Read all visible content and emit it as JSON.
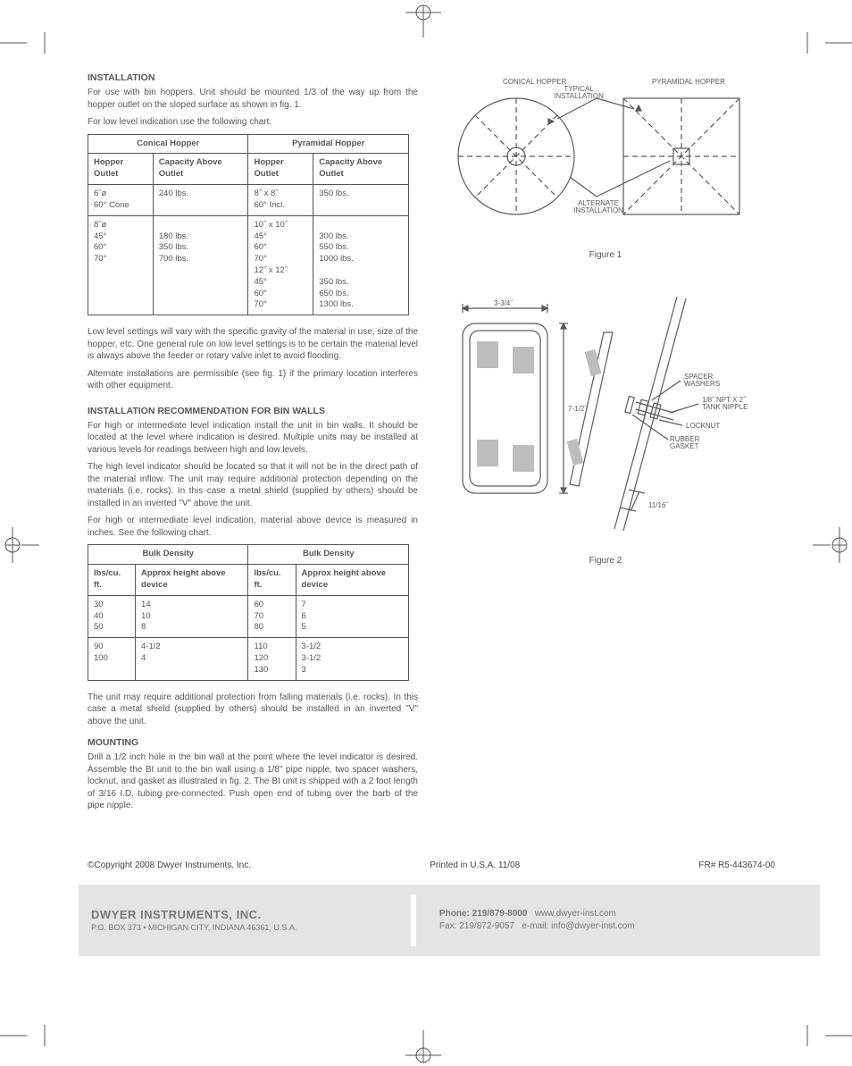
{
  "section1": {
    "title": "INSTALLATION",
    "p1": "For use with bin hoppers. Unit should be mounted 1/3 of the way up from the hopper outlet on the sloped surface as shown in fig. 1.",
    "p2": "For low level indication use the following chart.",
    "p3": "Low level settings will vary with the specific gravity of the material in use, size of the hopper, etc. One general rule on low level settings is to be certain the material level is always above the feeder or rotary valve inlet to avoid flooding.",
    "p4": "Alternate installations are permissible (see fig. 1) if the primary location interferes with other equipment."
  },
  "table1": {
    "group1": "Conical Hopper",
    "group2": "Pyramidal Hopper",
    "h1": "Hopper Outlet",
    "h2": "Capacity Above Outlet",
    "h3": "Hopper Outlet",
    "h4": "Capacity Above Outlet",
    "r1c1": "6˝ø\n60° Cone",
    "r1c2": "240 lbs.",
    "r1c3": "8˝ x 8˝\n60° Incl.",
    "r1c4": "350 lbs.",
    "r2c1": "8˝ø\n45°\n60°\n70°",
    "r2c2": "\n180 lbs.\n350 lbs.\n700 lbs.",
    "r2c3": "10˝ x 10˝\n45°\n60°\n70°\n12˝ x 12˝\n45°\n60°\n70°",
    "r2c4": "\n300 lbs.\n550 lbs.\n1000 lbs.\n\n350 lbs.\n650 lbs.\n1300 lbs."
  },
  "section2": {
    "title": "INSTALLATION RECOMMENDATION FOR BIN WALLS",
    "p1": "For high or intermediate level indication install the unit in bin walls. It should be located at the level where indication is desired. Multiple units may be installed at various levels for readings between high and low levels.",
    "p2": "The high level indicator should be located so that it will not be in the direct path of the material inflow. The unit may require additional protection depending on the materials (i.e. rocks). In this case a metal shield (supplied by others) should be installed in an inverted \"V\" above the unit.",
    "p3": "For high or intermediate level indication, material above device is measured in inches. See the following chart.",
    "p4": "The unit may require additional protection from falling materials (i.e. rocks). In this case a metal shield (supplied by others) should be installed in an inverted \"V\" above the unit."
  },
  "table2": {
    "group1": "Bulk Density",
    "group2": "Bulk Density",
    "h1": "lbs/cu. ft.",
    "h2": "Approx height above device",
    "h3": "lbs/cu. ft.",
    "h4": "Approx height above device",
    "r1c1": "30\n40\n50",
    "r1c2": "14\n10\n8",
    "r1c3": "60\n70\n80",
    "r1c4": "7\n6\n5",
    "r2c1": "90\n100",
    "r2c2": "4-1/2\n4",
    "r2c3": "110\n120\n130",
    "r2c4": "3-1/2\n3-1/2\n3"
  },
  "mounting": {
    "title": "MOUNTING",
    "p1": "Drill a 1/2 inch hole in the bin wall at the point where the level indicator is desired. Assemble the BI unit to the bin wall using a 1/8\" pipe nipple, two spacer washers, locknut, and gasket as illustrated in fig. 2. The BI unit is shipped with a 2 foot length of 3/16 I.D. tubing pre-connected. Push open end of tubing over the barb of the pipe nipple."
  },
  "fig1": {
    "caption": "Figure 1",
    "labels": {
      "conical": "CONICAL HOPPER",
      "pyramidal": "PYRAMIDAL HOPPER",
      "typical": "TYPICAL\nINSTALLATION",
      "alternate": "ALTERNATE\nINSTALLATION"
    }
  },
  "fig2": {
    "caption": "Figure 2",
    "labels": {
      "w": "3-3/4˝",
      "h": "7-1/2˝",
      "spacer": "SPACER\nWASHERS",
      "nipple": "1/8˝ NPT X 2˝\nTANK NIPPLE",
      "locknut": "LOCKNUT",
      "gasket": "RUBBER\nGASKET",
      "depth": "11/16˝"
    }
  },
  "footer": {
    "copyright": "©Copyright 2008 Dwyer Instruments, Inc.",
    "printed": "Printed in U.S.A. 11/08",
    "fr": "FR# R5-443674-00",
    "company": "DWYER INSTRUMENTS, INC.",
    "addr": "P.O. BOX 373 • MICHIGAN CITY, INDIANA 46361, U.S.A.",
    "phone": "Phone: 219/879-8000",
    "fax": "Fax: 219/872-9057",
    "web": "www.dwyer-inst.com",
    "email": "e-mail: info@dwyer-inst.com"
  },
  "colors": {
    "text": "#565656",
    "diagram_stroke": "#808080",
    "footer_bg": "#e4e4e4"
  }
}
